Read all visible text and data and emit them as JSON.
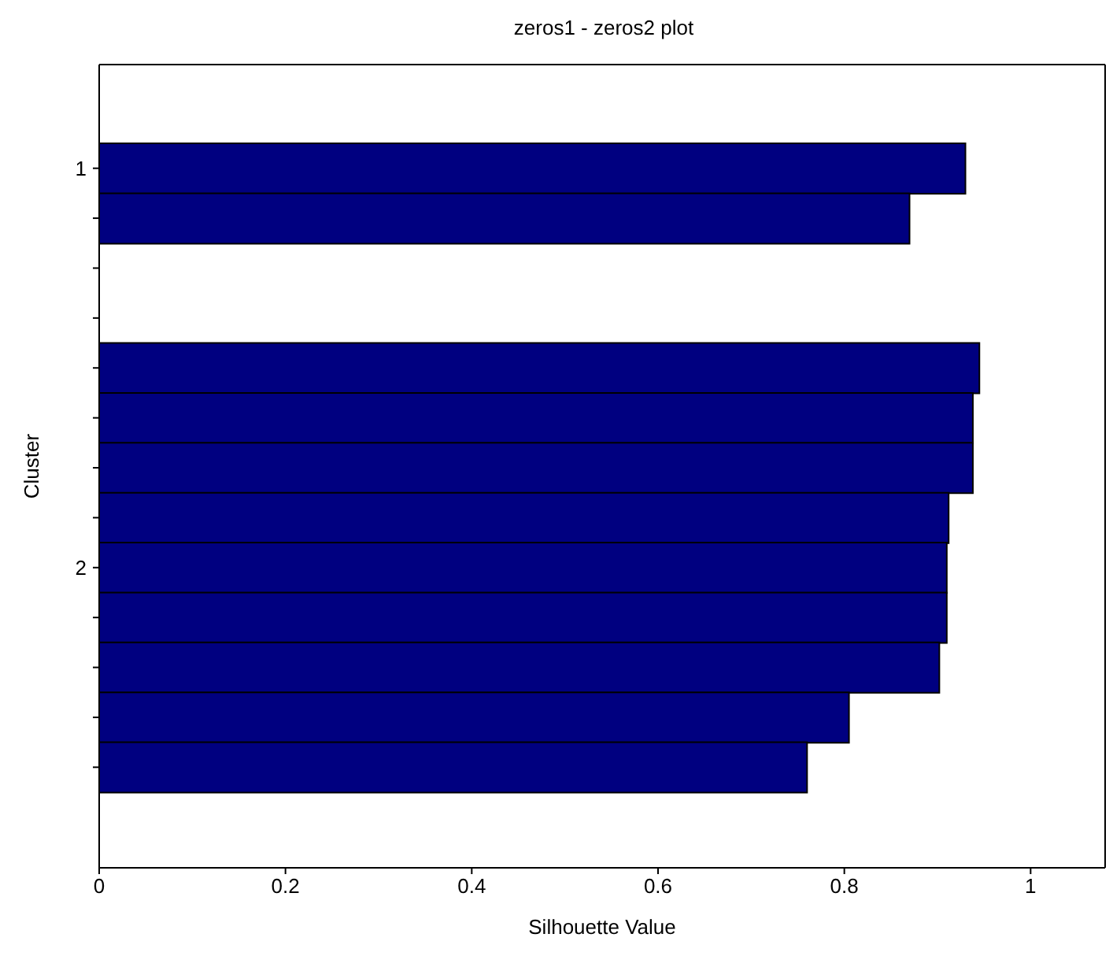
{
  "chart_data": {
    "type": "bar",
    "orientation": "horizontal",
    "title": "zeros1 - zeros2 plot",
    "xlabel": "Silhouette Value",
    "ylabel": "Cluster",
    "categories": [
      "1",
      null,
      null,
      null,
      null,
      null,
      null,
      null,
      "2",
      null,
      null,
      null,
      null
    ],
    "values": [
      0.93,
      0.87,
      null,
      null,
      0.945,
      0.938,
      0.938,
      0.912,
      0.91,
      0.91,
      0.902,
      0.805,
      0.76
    ],
    "color": "#000080",
    "xlim": [
      0,
      1.08
    ],
    "xticks": [
      0,
      0.2,
      0.4,
      0.6,
      0.8,
      1
    ],
    "grid": false,
    "legend": false
  }
}
